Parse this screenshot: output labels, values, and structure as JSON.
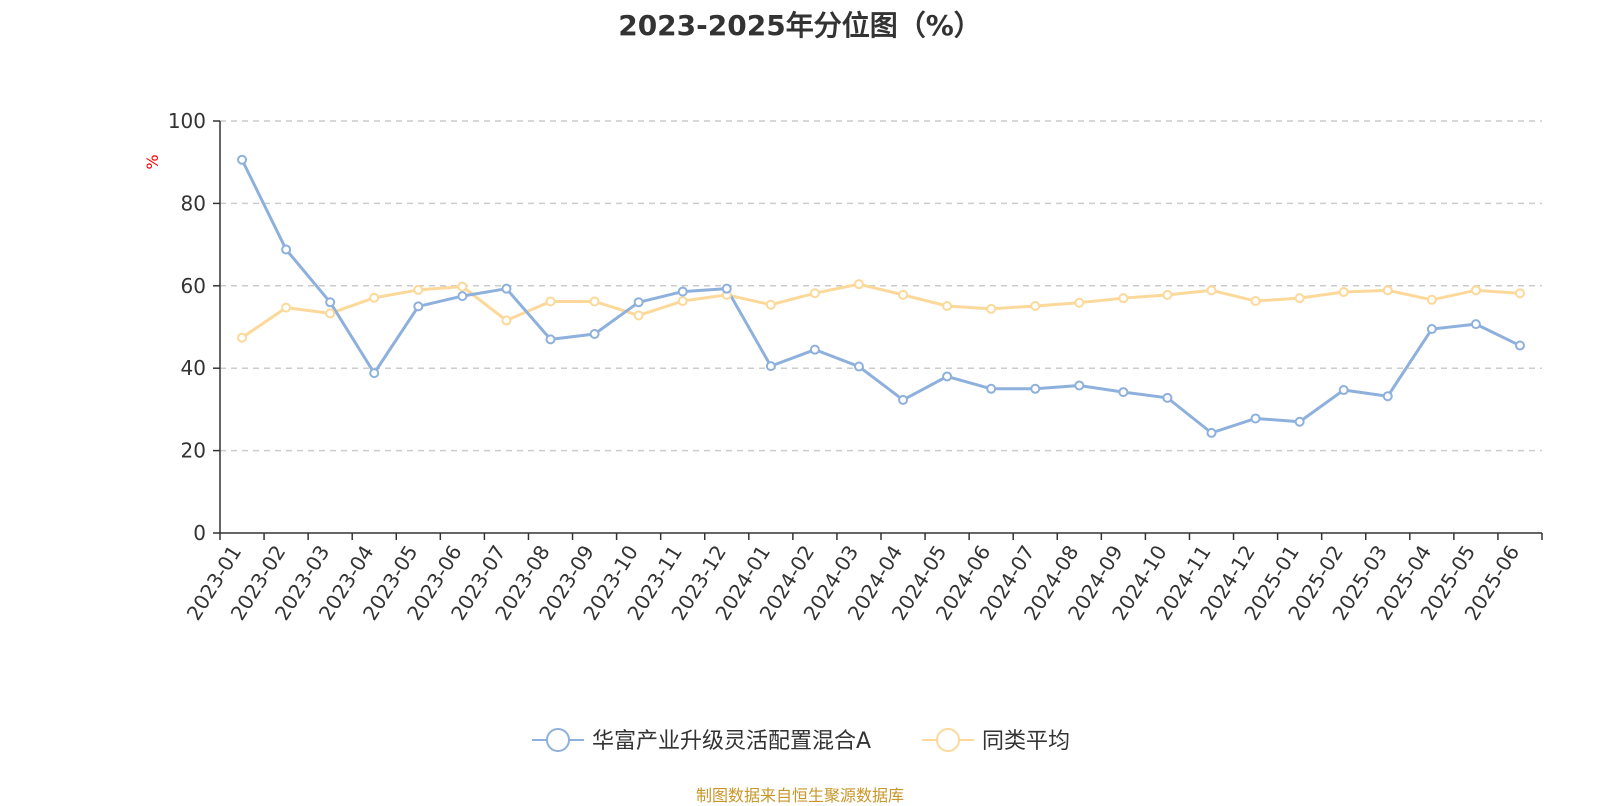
{
  "chart_data": {
    "type": "line",
    "title": "2023-2025年分位图（%）",
    "ylabel": "%",
    "xlabel": "",
    "ylim": [
      0,
      100
    ],
    "y_ticks": [
      0,
      20,
      40,
      60,
      80,
      100
    ],
    "grid": true,
    "legend_position": "bottom",
    "categories": [
      "2023-01",
      "2023-02",
      "2023-03",
      "2023-04",
      "2023-05",
      "2023-06",
      "2023-07",
      "2023-08",
      "2023-09",
      "2023-10",
      "2023-11",
      "2023-12",
      "2024-01",
      "2024-02",
      "2024-03",
      "2024-04",
      "2024-05",
      "2024-06",
      "2024-07",
      "2024-08",
      "2024-09",
      "2024-10",
      "2024-11",
      "2024-12",
      "2025-01",
      "2025-02",
      "2025-03",
      "2025-04",
      "2025-05",
      "2025-06"
    ],
    "series": [
      {
        "name": "华富产业升级灵活配置混合A",
        "color": "#8eb0dc",
        "values": [
          90.6,
          68.8,
          56.0,
          38.8,
          55.0,
          57.5,
          59.3,
          47.0,
          48.3,
          56.0,
          58.6,
          59.3,
          40.5,
          44.5,
          40.4,
          32.3,
          38.0,
          35.0,
          35.0,
          35.8,
          34.2,
          32.8,
          24.3,
          27.8,
          27.0,
          34.7,
          33.2,
          49.5,
          50.7,
          45.5
        ]
      },
      {
        "name": "同类平均",
        "color": "#fcd99a",
        "values": [
          47.4,
          54.7,
          53.3,
          57.1,
          59.0,
          59.8,
          51.6,
          56.2,
          56.2,
          52.8,
          56.3,
          57.8,
          55.4,
          58.2,
          60.4,
          57.8,
          55.1,
          54.4,
          55.1,
          55.9,
          57.0,
          57.8,
          58.9,
          56.3,
          57.0,
          58.5,
          58.9,
          56.6,
          58.9,
          58.2
        ]
      }
    ]
  },
  "footer": {
    "source": "制图数据来自恒生聚源数据库"
  }
}
